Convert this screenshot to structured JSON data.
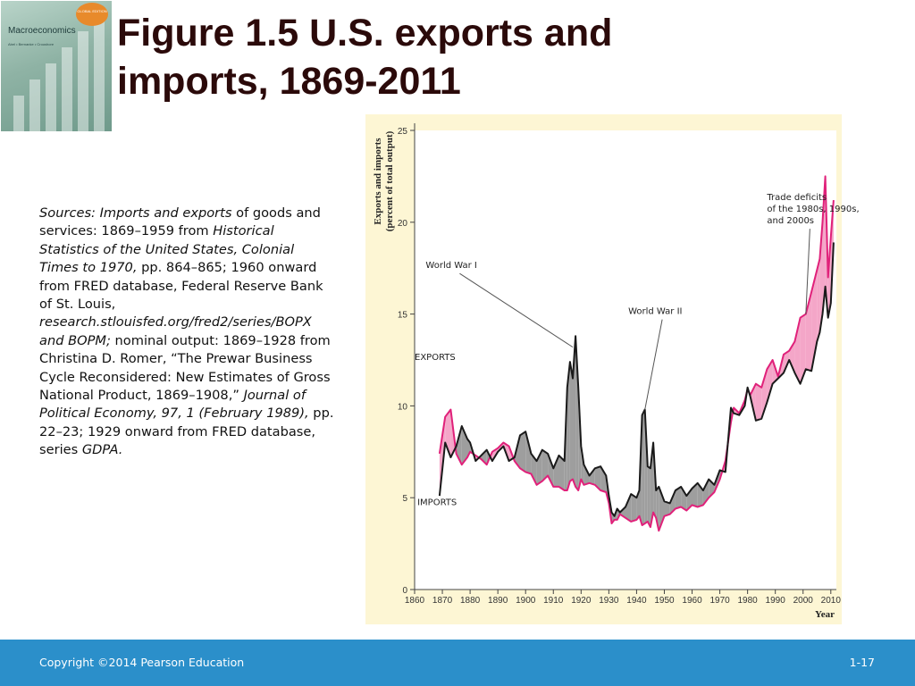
{
  "cover": {
    "badge": "GLOBAL EDITION",
    "title": "Macroeconomics",
    "authors": "Abel • Bernanke • Croushore"
  },
  "slide": {
    "title": "Figure 1.5  U.S. exports and imports, 1869-2011"
  },
  "sources": {
    "parts": [
      {
        "text": "Sources: Imports and exports",
        "italic": true
      },
      {
        "text": " of goods and services: 1869–1959 from ",
        "italic": false
      },
      {
        "text": "Historical Statistics of the United States, Colonial Times to 1970,",
        "italic": true
      },
      {
        "text": " pp. 864–865; 1960 onward from FRED database, Federal Reserve Bank of St. Louis, ",
        "italic": false
      },
      {
        "text": "research.stlouisfed.org/fred2/series/BOPX and BOPM;",
        "italic": true
      },
      {
        "text": " nominal output: 1869–1928 from Christina D. Romer, “The Prewar Business Cycle Reconsidered: New Estimates of Gross National Product, 1869–1908,” ",
        "italic": false
      },
      {
        "text": "Journal of Political Economy, 97, 1 (February 1989),",
        "italic": true
      },
      {
        "text": " pp. 22–23; 1929 onward from FRED database, series ",
        "italic": false
      },
      {
        "text": "GDPA.",
        "italic": true
      }
    ]
  },
  "footer": {
    "copyright": "Copyright ©2014 Pearson Education",
    "page_number": "1-17"
  },
  "chart_data": {
    "type": "line",
    "title": "",
    "ylabel_lines": [
      "Exports and imports",
      "(percent of total output)"
    ],
    "xlabel": "Year",
    "xlim": [
      1860,
      2012
    ],
    "ylim": [
      0,
      25
    ],
    "xticks": [
      1860,
      1870,
      1880,
      1890,
      1900,
      1910,
      1920,
      1930,
      1940,
      1950,
      1960,
      1970,
      1980,
      1990,
      2000,
      2010
    ],
    "yticks": [
      0,
      5,
      10,
      15,
      20,
      25
    ],
    "annotations": [
      {
        "lines": [
          "Trade deficits",
          "of the 1980s, 1990s,",
          "and 2000s"
        ],
        "x": 1987,
        "y": 21.2,
        "pointer": [
          2001,
          15.0
        ]
      },
      {
        "lines": [
          "World War I"
        ],
        "x": 1864,
        "y": 17.5,
        "pointer": [
          1917,
          13.2
        ]
      },
      {
        "lines": [
          "World War II"
        ],
        "x": 1937,
        "y": 15.0,
        "pointer": [
          1943,
          9.8
        ]
      },
      {
        "lines": [
          "EXPORTS"
        ],
        "x": 1860,
        "y": 12.5
      },
      {
        "lines": [
          "IMPORTS"
        ],
        "x": 1861,
        "y": 4.6
      }
    ],
    "colors": {
      "exports": "#1a1a1a",
      "imports": "#e0217a",
      "surplus_fill": "#9e9e9e",
      "deficit_fill": "#f4a6c8"
    },
    "series": [
      {
        "name": "EXPORTS",
        "x": [
          1869,
          1871,
          1873,
          1875,
          1877,
          1879,
          1880,
          1882,
          1884,
          1886,
          1888,
          1890,
          1892,
          1894,
          1896,
          1898,
          1900,
          1902,
          1904,
          1906,
          1908,
          1910,
          1912,
          1914,
          1915,
          1916,
          1917,
          1918,
          1919,
          1920,
          1921,
          1923,
          1925,
          1927,
          1929,
          1930,
          1931,
          1932,
          1933,
          1934,
          1936,
          1938,
          1940,
          1941,
          1942,
          1943,
          1944,
          1945,
          1946,
          1947,
          1948,
          1950,
          1952,
          1954,
          1956,
          1958,
          1960,
          1962,
          1964,
          1966,
          1968,
          1970,
          1972,
          1974,
          1975,
          1977,
          1979,
          1980,
          1981,
          1983,
          1985,
          1987,
          1989,
          1991,
          1993,
          1995,
          1997,
          1999,
          2001,
          2003,
          2005,
          2006,
          2007,
          2008,
          2009,
          2010,
          2011
        ],
        "y": [
          5.1,
          8.0,
          7.2,
          7.8,
          8.9,
          8.2,
          8.0,
          7.0,
          7.3,
          7.6,
          7.0,
          7.5,
          7.8,
          7.0,
          7.2,
          8.4,
          8.6,
          7.4,
          7.0,
          7.6,
          7.4,
          6.6,
          7.3,
          7.0,
          11.0,
          12.4,
          11.5,
          13.8,
          11.0,
          7.8,
          6.8,
          6.2,
          6.6,
          6.7,
          6.2,
          5.1,
          4.2,
          4.0,
          4.4,
          4.2,
          4.5,
          5.2,
          5.0,
          5.4,
          9.5,
          9.8,
          6.7,
          6.6,
          8.0,
          5.4,
          5.6,
          4.8,
          4.7,
          5.4,
          5.6,
          5.1,
          5.5,
          5.8,
          5.4,
          6.0,
          5.7,
          6.5,
          6.4,
          9.9,
          9.6,
          9.5,
          10.0,
          11.0,
          10.5,
          9.2,
          9.3,
          10.2,
          11.2,
          11.5,
          11.8,
          12.5,
          11.8,
          11.2,
          12.0,
          11.9,
          13.5,
          14.0,
          15.0,
          16.5,
          14.8,
          15.6,
          18.9
        ]
      },
      {
        "name": "IMPORTS",
        "x": [
          1869,
          1871,
          1873,
          1875,
          1877,
          1879,
          1880,
          1882,
          1884,
          1886,
          1888,
          1890,
          1892,
          1894,
          1896,
          1898,
          1900,
          1902,
          1904,
          1906,
          1908,
          1910,
          1912,
          1914,
          1915,
          1916,
          1917,
          1918,
          1919,
          1920,
          1921,
          1923,
          1925,
          1927,
          1929,
          1930,
          1931,
          1932,
          1933,
          1934,
          1936,
          1938,
          1940,
          1941,
          1942,
          1943,
          1944,
          1945,
          1946,
          1947,
          1948,
          1950,
          1952,
          1954,
          1956,
          1958,
          1960,
          1962,
          1964,
          1966,
          1968,
          1970,
          1972,
          1974,
          1975,
          1977,
          1979,
          1980,
          1981,
          1983,
          1985,
          1987,
          1989,
          1991,
          1993,
          1995,
          1997,
          1999,
          2001,
          2003,
          2005,
          2006,
          2007,
          2008,
          2009,
          2010,
          2011
        ],
        "y": [
          7.4,
          9.4,
          9.8,
          7.4,
          6.8,
          7.2,
          7.5,
          7.3,
          7.1,
          6.8,
          7.5,
          7.7,
          8.0,
          7.8,
          7.0,
          6.6,
          6.4,
          6.3,
          5.7,
          5.9,
          6.2,
          5.6,
          5.6,
          5.4,
          5.4,
          5.9,
          6.0,
          5.6,
          5.4,
          6.0,
          5.7,
          5.8,
          5.7,
          5.4,
          5.3,
          4.7,
          3.6,
          3.8,
          3.8,
          4.1,
          3.9,
          3.7,
          3.8,
          4.0,
          3.5,
          3.6,
          3.7,
          3.4,
          4.2,
          3.9,
          3.2,
          4.0,
          4.1,
          4.4,
          4.5,
          4.3,
          4.6,
          4.5,
          4.6,
          5.0,
          5.3,
          6.0,
          7.0,
          9.1,
          9.9,
          9.6,
          10.3,
          10.9,
          10.6,
          11.2,
          11.0,
          12.0,
          12.5,
          11.6,
          12.8,
          13.0,
          13.5,
          14.8,
          15.0,
          16.2,
          17.4,
          18.0,
          20.0,
          22.5,
          17.0,
          19.2,
          21.2
        ]
      }
    ]
  }
}
